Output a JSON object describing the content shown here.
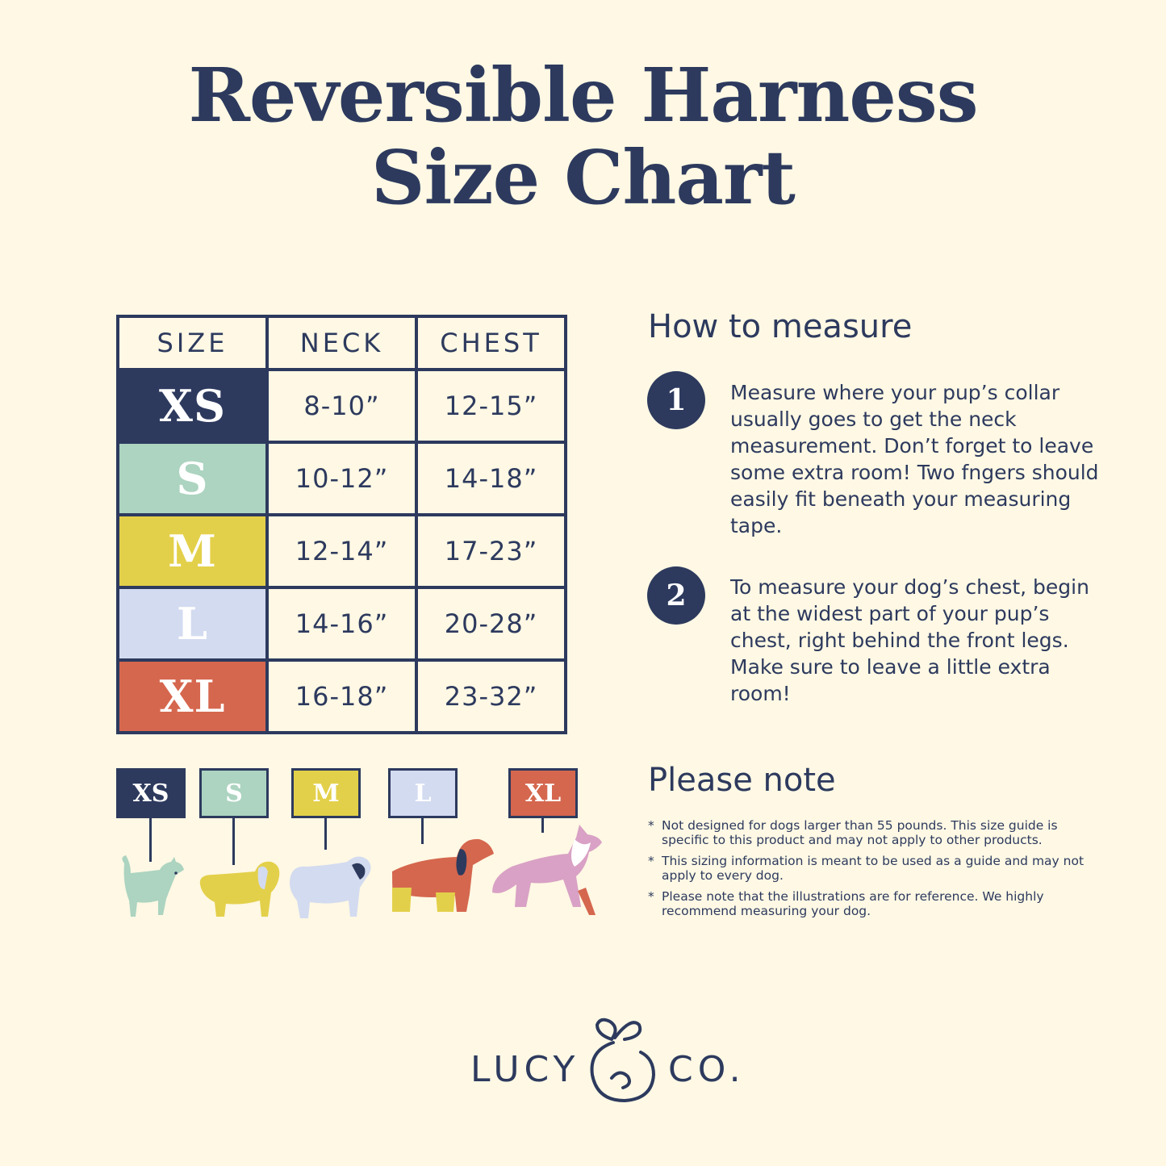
{
  "title": {
    "line1": "Reversible Harness",
    "line2": "Size Chart"
  },
  "colors": {
    "background": "#fef8e4",
    "navy": "#2d3a5e",
    "xs": "#2d3a5e",
    "s": "#acd4c0",
    "m": "#e3d04a",
    "l": "#d3dbf0",
    "xl": "#d5674e"
  },
  "table": {
    "headers": [
      "SIZE",
      "NECK",
      "CHEST"
    ],
    "rows": [
      {
        "size": "XS",
        "neck": "8-10”",
        "chest": "12-15”"
      },
      {
        "size": "S",
        "neck": "10-12”",
        "chest": "14-18”"
      },
      {
        "size": "M",
        "neck": "12-14”",
        "chest": "17-23”"
      },
      {
        "size": "L",
        "neck": "14-16”",
        "chest": "20-28”"
      },
      {
        "size": "XL",
        "neck": "16-18”",
        "chest": "23-32”"
      }
    ]
  },
  "measure": {
    "heading": "How to measure",
    "steps": [
      {
        "num": "1",
        "text": "Measure where your pup’s collar usually goes to get the neck measurement. Don’t forget to leave some extra room! Two fngers should easily fit beneath your measuring tape."
      },
      {
        "num": "2",
        "text": "To measure your dog’s chest, begin at the widest part of your pup’s chest, right behind the front legs. Make sure to leave a little extra room!"
      }
    ]
  },
  "note": {
    "heading": "Please note",
    "items": [
      "Not designed for dogs larger than 55 pounds. This size guide is specific to this product and may not apply to other products.",
      "This sizing information is meant to be used as a guide and may not apply to every dog.",
      "Please note that the illustrations are for reference. We highly recommend measuring your dog."
    ],
    "bullet": "*"
  },
  "illustration_labels": [
    "XS",
    "S",
    "M",
    "L",
    "XL"
  ],
  "logo": {
    "left": "LUCY",
    "right": "CO."
  }
}
